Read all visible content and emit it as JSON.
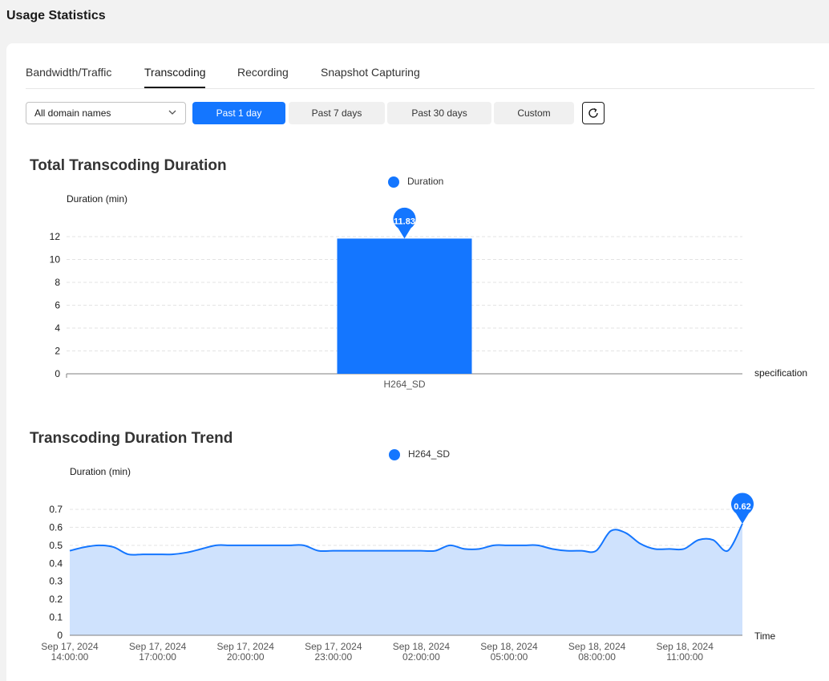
{
  "page": {
    "title": "Usage Statistics"
  },
  "tabs": [
    {
      "label": "Bandwidth/Traffic",
      "active": false
    },
    {
      "label": "Transcoding",
      "active": true
    },
    {
      "label": "Recording",
      "active": false
    },
    {
      "label": "Snapshot Capturing",
      "active": false
    }
  ],
  "filters": {
    "domain_select": {
      "value": "All domain names",
      "icon": "chevron-down-icon"
    },
    "ranges": [
      {
        "label": "Past 1 day",
        "active": true
      },
      {
        "label": "Past 7 days",
        "active": false
      },
      {
        "label": "Past 30 days",
        "active": false
      },
      {
        "label": "Custom",
        "active": false
      }
    ],
    "refresh_icon": "refresh-icon"
  },
  "colors": {
    "accent": "#1476ff",
    "area_fill": "#cfe2fd"
  },
  "chart_data": [
    {
      "type": "bar",
      "title": "Total Transcoding Duration",
      "legend": [
        "Duration"
      ],
      "ylabel": "Duration (min)",
      "xlabel": "specification",
      "categories": [
        "H264_SD"
      ],
      "values": [
        11.83
      ],
      "ylim": [
        0,
        12
      ],
      "yticks": [
        0,
        2,
        4,
        6,
        8,
        10,
        12
      ],
      "marker_label": "11.83",
      "grid": true
    },
    {
      "type": "area",
      "title": "Transcoding Duration Trend",
      "legend": [
        "H264_SD"
      ],
      "ylabel": "Duration (min)",
      "xlabel": "Time",
      "ylim": [
        0,
        0.7
      ],
      "yticks": [
        0,
        0.1,
        0.2,
        0.3,
        0.4,
        0.5,
        0.6,
        0.7
      ],
      "xticks": [
        [
          "Sep 17, 2024",
          "14:00:00"
        ],
        [
          "Sep 17, 2024",
          "17:00:00"
        ],
        [
          "Sep 17, 2024",
          "20:00:00"
        ],
        [
          "Sep 17, 2024",
          "23:00:00"
        ],
        [
          "Sep 18, 2024",
          "02:00:00"
        ],
        [
          "Sep 18, 2024",
          "05:00:00"
        ],
        [
          "Sep 18, 2024",
          "08:00:00"
        ],
        [
          "Sep 18, 2024",
          "11:00:00"
        ]
      ],
      "series": [
        {
          "name": "H264_SD",
          "x_hours": [
            0,
            0.5,
            1,
            1.5,
            2,
            2.5,
            3,
            3.5,
            4,
            4.5,
            5,
            5.5,
            6,
            6.5,
            7,
            7.5,
            8,
            8.5,
            9,
            9.5,
            10,
            10.5,
            11,
            11.5,
            12,
            12.5,
            13,
            13.5,
            14,
            14.5,
            15,
            15.5,
            16,
            16.5,
            17,
            17.5,
            18,
            18.5,
            19,
            19.5,
            20,
            20.5,
            21,
            21.5,
            22,
            22.5,
            23
          ],
          "values": [
            0.47,
            0.49,
            0.5,
            0.49,
            0.45,
            0.45,
            0.45,
            0.45,
            0.46,
            0.48,
            0.5,
            0.5,
            0.5,
            0.5,
            0.5,
            0.5,
            0.5,
            0.47,
            0.47,
            0.47,
            0.47,
            0.47,
            0.47,
            0.47,
            0.47,
            0.47,
            0.5,
            0.48,
            0.48,
            0.5,
            0.5,
            0.5,
            0.5,
            0.48,
            0.47,
            0.47,
            0.47,
            0.58,
            0.57,
            0.51,
            0.48,
            0.48,
            0.48,
            0.53,
            0.53,
            0.47,
            0.62
          ]
        }
      ],
      "marker_label": "0.62",
      "grid": true
    }
  ]
}
